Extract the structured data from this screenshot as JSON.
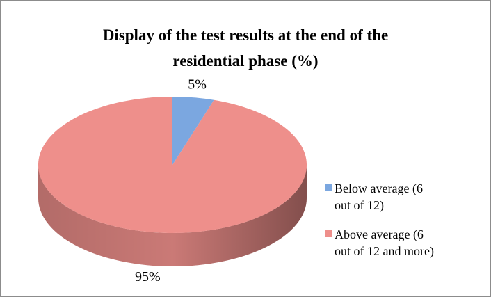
{
  "chart_data": {
    "type": "pie",
    "title": "Display of the test results at the end of the residential phase (%)",
    "categories": [
      "Below average (6 out of 12)",
      "Above average (6 out of 12 and more)"
    ],
    "values": [
      5,
      95
    ],
    "value_labels": [
      "5%",
      "95%"
    ],
    "colors": [
      "#7ba7e0",
      "#ee8f8b"
    ],
    "legend": "right"
  }
}
